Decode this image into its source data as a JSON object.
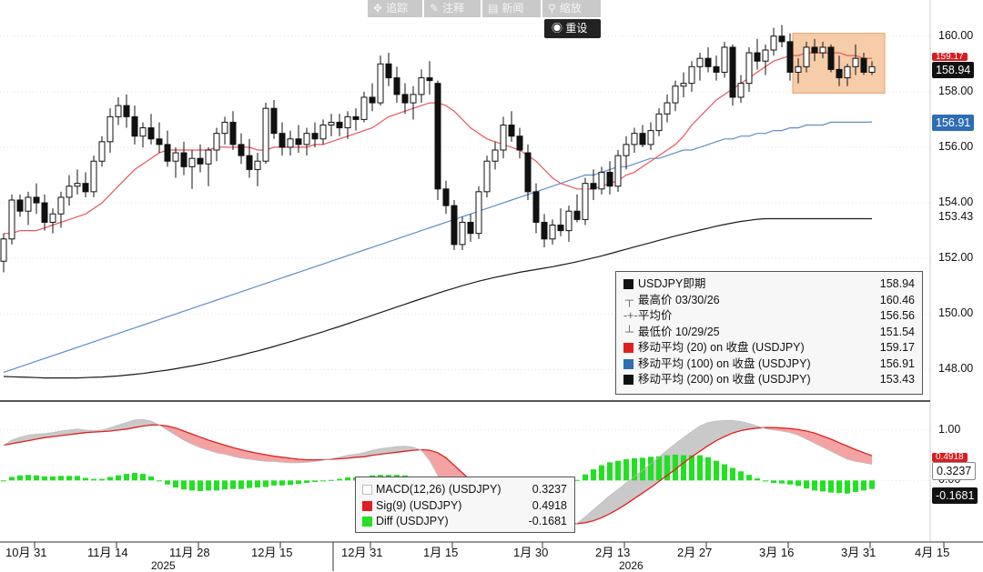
{
  "toolbar": {
    "items": [
      {
        "icon": "crosshair-icon",
        "label": "追踪"
      },
      {
        "icon": "pencil-icon",
        "label": "注释"
      },
      {
        "icon": "news-icon",
        "label": "新闻"
      },
      {
        "icon": "zoom-icon",
        "label": "缩放"
      }
    ],
    "reset_label": "重设"
  },
  "colors": {
    "ma20": "#e8565f",
    "ma100": "#5d8ec9",
    "ma200": "#1a1a1a",
    "macd": "#d9d9d9",
    "sig": "#e02020",
    "diff": "#22e022",
    "highlight": "#f6c7a0",
    "badge_red": "#d42020",
    "badge_blue": "#2f6db5",
    "badge_black": "#111111"
  },
  "chart_data": {
    "type": "candlestick",
    "price_axis": {
      "ylim": [
        146.9,
        161.3
      ],
      "ticks": [
        148.0,
        150.0,
        152.0,
        154.0,
        156.0,
        158.0,
        160.0
      ]
    },
    "price_badges": {
      "last": "158.94",
      "ma100": "156.91",
      "ma200": "153.43",
      "ma20": "159.17"
    },
    "macd_axis": {
      "ticks": [
        "1.00",
        "0.00"
      ]
    },
    "macd_badges": {
      "macd": "0.3237",
      "sig": "0.4918",
      "diff": "-0.1681"
    },
    "x_ticks": [
      "10月 31",
      "11月 14",
      "11月 28",
      "12月 15",
      "12月 31",
      "1月 15",
      "1月 30",
      "2月 13",
      "2月 27",
      "3月 16",
      "3月 31",
      "4月 15"
    ],
    "year_labels": [
      "2025",
      "2026"
    ],
    "candles_ohlc": [
      [
        151.9,
        152.9,
        151.5,
        152.7
      ],
      [
        152.7,
        154.3,
        152.5,
        154.1
      ],
      [
        154.1,
        154.3,
        153.5,
        153.7
      ],
      [
        153.7,
        154.4,
        153.2,
        154.2
      ],
      [
        154.2,
        154.7,
        153.6,
        154.0
      ],
      [
        154.0,
        154.3,
        153.0,
        153.3
      ],
      [
        153.3,
        153.8,
        152.9,
        153.6
      ],
      [
        153.6,
        154.4,
        153.1,
        154.2
      ],
      [
        154.2,
        155.0,
        153.9,
        154.6
      ],
      [
        154.6,
        155.2,
        154.3,
        154.7
      ],
      [
        154.7,
        155.1,
        154.2,
        154.4
      ],
      [
        154.4,
        155.7,
        154.2,
        155.5
      ],
      [
        155.5,
        156.4,
        155.3,
        156.2
      ],
      [
        156.2,
        157.4,
        155.8,
        157.1
      ],
      [
        157.1,
        157.8,
        156.8,
        157.5
      ],
      [
        157.5,
        157.9,
        156.7,
        157.1
      ],
      [
        157.1,
        157.5,
        156.1,
        156.4
      ],
      [
        156.4,
        156.9,
        156.0,
        156.7
      ],
      [
        156.7,
        157.2,
        156.1,
        156.3
      ],
      [
        156.3,
        156.9,
        155.8,
        156.1
      ],
      [
        156.1,
        156.6,
        155.3,
        155.5
      ],
      [
        155.5,
        156.0,
        154.9,
        155.8
      ],
      [
        155.8,
        156.2,
        155.0,
        155.3
      ],
      [
        155.3,
        155.9,
        154.5,
        155.6
      ],
      [
        155.6,
        156.1,
        155.1,
        155.4
      ],
      [
        155.4,
        156.0,
        154.6,
        155.9
      ],
      [
        155.9,
        156.7,
        155.5,
        156.5
      ],
      [
        156.5,
        157.1,
        156.1,
        156.9
      ],
      [
        156.9,
        157.3,
        155.9,
        156.1
      ],
      [
        156.1,
        156.5,
        155.4,
        155.7
      ],
      [
        155.7,
        156.3,
        154.9,
        155.2
      ],
      [
        155.2,
        155.8,
        154.6,
        155.5
      ],
      [
        155.5,
        157.6,
        155.4,
        157.4
      ],
      [
        157.4,
        157.7,
        156.3,
        156.5
      ],
      [
        156.5,
        156.9,
        155.7,
        156.0
      ],
      [
        156.0,
        156.6,
        155.7,
        156.3
      ],
      [
        156.3,
        156.8,
        155.8,
        156.1
      ],
      [
        156.1,
        156.7,
        155.7,
        156.5
      ],
      [
        156.5,
        156.9,
        156.0,
        156.3
      ],
      [
        156.3,
        157.0,
        156.1,
        156.8
      ],
      [
        156.8,
        157.2,
        156.4,
        156.9
      ],
      [
        156.9,
        157.2,
        156.4,
        156.7
      ],
      [
        156.7,
        157.3,
        156.3,
        157.1
      ],
      [
        157.1,
        157.4,
        156.6,
        157.0
      ],
      [
        157.0,
        158.0,
        156.9,
        157.8
      ],
      [
        157.8,
        158.3,
        157.3,
        157.6
      ],
      [
        157.6,
        159.3,
        157.5,
        159.0
      ],
      [
        159.0,
        159.4,
        158.2,
        158.5
      ],
      [
        158.5,
        158.9,
        157.6,
        157.9
      ],
      [
        157.9,
        158.3,
        157.2,
        157.6
      ],
      [
        157.6,
        158.2,
        157.0,
        157.9
      ],
      [
        157.9,
        158.8,
        157.6,
        158.5
      ],
      [
        158.5,
        159.1,
        157.9,
        158.4
      ],
      [
        158.3,
        158.4,
        154.1,
        154.5
      ],
      [
        154.5,
        154.8,
        153.6,
        153.9
      ],
      [
        153.9,
        154.1,
        152.3,
        152.5
      ],
      [
        152.5,
        153.5,
        152.3,
        153.3
      ],
      [
        153.3,
        153.6,
        152.6,
        152.9
      ],
      [
        152.9,
        154.6,
        152.7,
        154.4
      ],
      [
        154.4,
        155.7,
        154.2,
        155.5
      ],
      [
        155.5,
        156.2,
        155.2,
        155.9
      ],
      [
        155.9,
        157.1,
        155.6,
        156.8
      ],
      [
        156.8,
        157.3,
        156.2,
        156.4
      ],
      [
        156.4,
        156.7,
        155.6,
        155.9
      ],
      [
        155.8,
        156.1,
        154.1,
        154.4
      ],
      [
        154.4,
        154.7,
        152.9,
        153.3
      ],
      [
        153.3,
        153.6,
        152.4,
        152.7
      ],
      [
        152.7,
        153.4,
        152.5,
        153.2
      ],
      [
        153.2,
        153.8,
        152.8,
        153.0
      ],
      [
        153.0,
        153.9,
        152.6,
        153.7
      ],
      [
        153.7,
        154.3,
        153.3,
        153.4
      ],
      [
        153.4,
        154.9,
        153.2,
        154.7
      ],
      [
        154.7,
        155.2,
        154.1,
        154.5
      ],
      [
        154.5,
        155.3,
        154.3,
        155.1
      ],
      [
        155.1,
        155.5,
        154.3,
        154.6
      ],
      [
        154.6,
        155.9,
        154.4,
        155.7
      ],
      [
        155.7,
        156.4,
        155.2,
        156.1
      ],
      [
        156.1,
        156.7,
        155.8,
        156.5
      ],
      [
        156.5,
        156.8,
        156.0,
        156.1
      ],
      [
        156.1,
        156.9,
        155.9,
        156.6
      ],
      [
        156.6,
        157.4,
        156.4,
        157.2
      ],
      [
        157.2,
        157.9,
        156.9,
        157.6
      ],
      [
        157.6,
        158.4,
        157.3,
        158.2
      ],
      [
        158.2,
        158.7,
        157.8,
        158.3
      ],
      [
        158.3,
        159.1,
        158.0,
        158.9
      ],
      [
        158.9,
        159.4,
        158.4,
        159.2
      ],
      [
        159.2,
        159.6,
        158.7,
        158.9
      ],
      [
        158.9,
        159.3,
        158.4,
        158.7
      ],
      [
        158.7,
        159.8,
        158.5,
        159.6
      ],
      [
        159.6,
        159.7,
        157.5,
        157.8
      ],
      [
        157.8,
        158.6,
        157.6,
        158.3
      ],
      [
        158.3,
        159.6,
        158.0,
        159.4
      ],
      [
        159.4,
        159.9,
        158.8,
        159.1
      ],
      [
        159.1,
        159.7,
        158.6,
        159.5
      ],
      [
        159.5,
        160.3,
        159.3,
        160.0
      ],
      [
        160.0,
        160.4,
        159.6,
        159.8
      ],
      [
        159.8,
        160.1,
        158.4,
        158.7
      ],
      [
        158.7,
        159.2,
        158.3,
        158.9
      ],
      [
        158.9,
        159.8,
        158.7,
        159.6
      ],
      [
        159.6,
        159.9,
        159.1,
        159.4
      ],
      [
        159.4,
        159.8,
        159.2,
        159.6
      ],
      [
        159.6,
        159.7,
        158.7,
        158.8
      ],
      [
        158.8,
        159.3,
        158.2,
        158.5
      ],
      [
        158.5,
        159.0,
        158.2,
        158.9
      ],
      [
        158.9,
        159.7,
        158.6,
        159.2
      ],
      [
        159.2,
        159.4,
        158.6,
        158.7
      ],
      [
        158.7,
        159.1,
        158.6,
        158.9
      ]
    ],
    "ma20": [
      152.9,
      152.9,
      153.0,
      153.0,
      153.0,
      153.1,
      153.2,
      153.3,
      153.4,
      153.5,
      153.6,
      153.8,
      154.0,
      154.3,
      154.6,
      154.9,
      155.2,
      155.4,
      155.6,
      155.8,
      155.9,
      155.9,
      155.9,
      155.9,
      155.9,
      155.9,
      156.0,
      156.0,
      156.0,
      156.0,
      156.0,
      155.9,
      155.9,
      156.0,
      156.0,
      156.0,
      156.0,
      156.0,
      156.1,
      156.1,
      156.2,
      156.3,
      156.4,
      156.5,
      156.6,
      156.7,
      156.9,
      157.1,
      157.2,
      157.3,
      157.4,
      157.5,
      157.6,
      157.6,
      157.5,
      157.3,
      157.0,
      156.7,
      156.5,
      156.3,
      156.2,
      156.1,
      156.0,
      155.9,
      155.7,
      155.5,
      155.2,
      154.9,
      154.7,
      154.6,
      154.5,
      154.5,
      154.5,
      154.6,
      154.7,
      154.8,
      155.0,
      155.1,
      155.3,
      155.5,
      155.7,
      155.9,
      156.1,
      156.4,
      156.8,
      157.1,
      157.4,
      157.7,
      157.9,
      158.1,
      158.3,
      158.5,
      158.7,
      158.9,
      159.1,
      159.2,
      159.3,
      159.3,
      159.4,
      159.4,
      159.4,
      159.4,
      159.4,
      159.3,
      159.3,
      159.2,
      159.2
    ],
    "ma100": [
      147.9,
      148.0,
      148.1,
      148.2,
      148.3,
      148.4,
      148.5,
      148.6,
      148.7,
      148.8,
      148.9,
      149.0,
      149.1,
      149.2,
      149.3,
      149.4,
      149.5,
      149.6,
      149.7,
      149.8,
      149.9,
      150.0,
      150.1,
      150.2,
      150.3,
      150.4,
      150.5,
      150.6,
      150.7,
      150.8,
      150.9,
      151.0,
      151.1,
      151.2,
      151.3,
      151.4,
      151.5,
      151.6,
      151.7,
      151.8,
      151.9,
      152.0,
      152.1,
      152.2,
      152.3,
      152.4,
      152.5,
      152.6,
      152.7,
      152.8,
      152.9,
      153.0,
      153.1,
      153.2,
      153.3,
      153.4,
      153.5,
      153.6,
      153.7,
      153.8,
      153.9,
      154.0,
      154.1,
      154.2,
      154.3,
      154.4,
      154.5,
      154.6,
      154.7,
      154.8,
      154.9,
      155.0,
      155.0,
      155.1,
      155.2,
      155.3,
      155.3,
      155.4,
      155.5,
      155.6,
      155.6,
      155.7,
      155.8,
      155.9,
      155.9,
      156.0,
      156.1,
      156.2,
      156.3,
      156.3,
      156.4,
      156.4,
      156.5,
      156.5,
      156.6,
      156.6,
      156.7,
      156.7,
      156.8,
      156.8,
      156.8,
      156.9,
      156.9,
      156.9,
      156.9,
      156.9,
      156.91
    ],
    "ma200": [
      147.75,
      147.74,
      147.73,
      147.72,
      147.71,
      147.7,
      147.7,
      147.7,
      147.7,
      147.7,
      147.71,
      147.72,
      147.73,
      147.75,
      147.77,
      147.8,
      147.83,
      147.86,
      147.9,
      147.94,
      147.98,
      148.03,
      148.08,
      148.13,
      148.19,
      148.25,
      148.31,
      148.38,
      148.45,
      148.52,
      148.6,
      148.67,
      148.75,
      148.83,
      148.92,
      149.0,
      149.09,
      149.18,
      149.27,
      149.36,
      149.46,
      149.55,
      149.65,
      149.75,
      149.85,
      149.95,
      150.05,
      150.15,
      150.25,
      150.35,
      150.45,
      150.55,
      150.65,
      150.75,
      150.84,
      150.93,
      151.02,
      151.1,
      151.18,
      151.25,
      151.32,
      151.38,
      151.44,
      151.5,
      151.55,
      151.6,
      151.65,
      151.7,
      151.76,
      151.82,
      151.88,
      151.95,
      152.02,
      152.09,
      152.17,
      152.25,
      152.33,
      152.41,
      152.49,
      152.57,
      152.65,
      152.73,
      152.81,
      152.88,
      152.95,
      153.02,
      153.09,
      153.16,
      153.22,
      153.28,
      153.33,
      153.37,
      153.41,
      153.43,
      153.43,
      153.43,
      153.43,
      153.43,
      153.43,
      153.43,
      153.43,
      153.43,
      153.43,
      153.43,
      153.43,
      153.43,
      153.43
    ],
    "macd_line": [
      0.7,
      0.8,
      0.86,
      0.9,
      0.92,
      0.93,
      0.95,
      0.98,
      1.0,
      1.02,
      1.0,
      0.99,
      1.0,
      1.05,
      1.1,
      1.15,
      1.2,
      1.21,
      1.18,
      1.1,
      1.0,
      0.9,
      0.8,
      0.72,
      0.65,
      0.6,
      0.55,
      0.52,
      0.48,
      0.44,
      0.42,
      0.4,
      0.38,
      0.38,
      0.36,
      0.35,
      0.35,
      0.36,
      0.38,
      0.4,
      0.43,
      0.46,
      0.5,
      0.52,
      0.55,
      0.6,
      0.63,
      0.65,
      0.67,
      0.68,
      0.66,
      0.6,
      0.4,
      0.1,
      -0.25,
      -0.6,
      -0.8,
      -0.92,
      -0.95,
      -0.92,
      -0.88,
      -0.8,
      -0.74,
      -0.72,
      -0.74,
      -0.8,
      -0.88,
      -0.94,
      -0.98,
      -0.95,
      -0.85,
      -0.72,
      -0.58,
      -0.44,
      -0.3,
      -0.18,
      -0.05,
      0.08,
      0.2,
      0.33,
      0.46,
      0.6,
      0.73,
      0.85,
      0.97,
      1.08,
      1.15,
      1.18,
      1.19,
      1.19,
      1.17,
      1.13,
      1.08,
      1.03,
      1.0,
      0.98,
      0.95,
      0.9,
      0.82,
      0.74,
      0.66,
      0.58,
      0.5,
      0.42,
      0.38,
      0.35,
      0.32
    ],
    "sig_line": [
      0.7,
      0.73,
      0.76,
      0.79,
      0.82,
      0.85,
      0.87,
      0.89,
      0.91,
      0.93,
      0.95,
      0.96,
      0.97,
      0.98,
      1.0,
      1.02,
      1.05,
      1.08,
      1.1,
      1.1,
      1.08,
      1.04,
      0.98,
      0.92,
      0.86,
      0.8,
      0.75,
      0.7,
      0.65,
      0.61,
      0.57,
      0.54,
      0.51,
      0.48,
      0.46,
      0.44,
      0.42,
      0.41,
      0.41,
      0.41,
      0.42,
      0.43,
      0.44,
      0.46,
      0.47,
      0.5,
      0.52,
      0.54,
      0.56,
      0.58,
      0.6,
      0.61,
      0.6,
      0.55,
      0.45,
      0.3,
      0.15,
      0.0,
      -0.15,
      -0.28,
      -0.4,
      -0.5,
      -0.57,
      -0.62,
      -0.66,
      -0.7,
      -0.74,
      -0.78,
      -0.82,
      -0.85,
      -0.86,
      -0.84,
      -0.8,
      -0.74,
      -0.66,
      -0.57,
      -0.47,
      -0.36,
      -0.25,
      -0.14,
      -0.02,
      0.1,
      0.22,
      0.35,
      0.47,
      0.58,
      0.69,
      0.79,
      0.87,
      0.94,
      0.99,
      1.02,
      1.04,
      1.05,
      1.05,
      1.04,
      1.03,
      1.01,
      0.98,
      0.94,
      0.88,
      0.82,
      0.75,
      0.68,
      0.61,
      0.55,
      0.49
    ],
    "diff_hist": [
      0.0,
      0.07,
      0.1,
      0.11,
      0.1,
      0.08,
      0.08,
      0.09,
      0.09,
      0.09,
      0.05,
      0.03,
      0.03,
      0.07,
      0.1,
      0.13,
      0.15,
      0.13,
      0.08,
      0.0,
      -0.08,
      -0.14,
      -0.18,
      -0.2,
      -0.21,
      -0.2,
      -0.2,
      -0.18,
      -0.17,
      -0.17,
      -0.15,
      -0.14,
      -0.13,
      -0.1,
      -0.1,
      -0.09,
      -0.07,
      -0.05,
      -0.03,
      -0.01,
      0.01,
      0.03,
      0.06,
      0.06,
      0.08,
      0.1,
      0.11,
      0.11,
      0.11,
      0.1,
      0.06,
      -0.01,
      -0.2,
      -0.45,
      -0.7,
      -0.9,
      -0.95,
      -0.92,
      -0.8,
      -0.64,
      -0.48,
      -0.3,
      -0.17,
      -0.1,
      -0.08,
      -0.1,
      -0.14,
      -0.16,
      -0.16,
      -0.1,
      0.01,
      0.12,
      0.22,
      0.3,
      0.36,
      0.39,
      0.42,
      0.44,
      0.45,
      0.47,
      0.48,
      0.5,
      0.51,
      0.5,
      0.5,
      0.5,
      0.46,
      0.39,
      0.32,
      0.25,
      0.18,
      0.11,
      0.04,
      -0.02,
      -0.05,
      -0.06,
      -0.08,
      -0.11,
      -0.16,
      -0.2,
      -0.22,
      -0.24,
      -0.25,
      -0.26,
      -0.23,
      -0.2,
      -0.17
    ]
  },
  "legend_price": {
    "title": "USDJPY即期",
    "title_val": "158.94",
    "rows": [
      {
        "label": "最高价 03/30/26",
        "val": "160.46"
      },
      {
        "label": "平均价",
        "val": "156.56"
      },
      {
        "label": "最低价 10/29/25",
        "val": "151.54"
      },
      {
        "label": "移动平均 (20)  on 收盘 (USDJPY)",
        "val": "159.17"
      },
      {
        "label": "移动平均 (100)  on 收盘 (USDJPY)",
        "val": "156.91"
      },
      {
        "label": "移动平均 (200)  on 收盘 (USDJPY)",
        "val": "153.43"
      }
    ]
  },
  "legend_macd": {
    "rows": [
      {
        "label": "MACD(12,26) (USDJPY)",
        "val": "0.3237"
      },
      {
        "label": "Sig(9) (USDJPY)",
        "val": "0.4918"
      },
      {
        "label": "Diff (USDJPY)",
        "val": "-0.1681"
      }
    ]
  }
}
